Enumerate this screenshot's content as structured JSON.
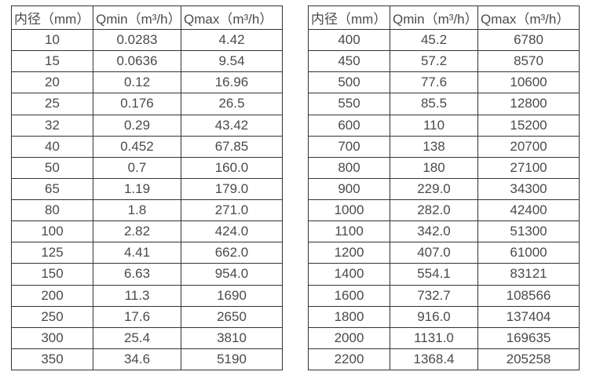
{
  "page": {
    "background": "#ffffff",
    "text_color": "#4a4a4a",
    "border_color": "#333333"
  },
  "tables": [
    {
      "name": "flow-range-table-small-diameters",
      "headers": [
        "内径（mm）",
        "Qmin（m³/h）",
        "Qmax（m³/h）"
      ],
      "rows": [
        [
          "10",
          "0.0283",
          "4.42"
        ],
        [
          "15",
          "0.0636",
          "9.54"
        ],
        [
          "20",
          "0.12",
          "16.96"
        ],
        [
          "25",
          "0.176",
          "26.5"
        ],
        [
          "32",
          "0.29",
          "43.42"
        ],
        [
          "40",
          "0.452",
          "67.85"
        ],
        [
          "50",
          "0.7",
          "160.0"
        ],
        [
          "65",
          "1.19",
          "179.0"
        ],
        [
          "80",
          "1.8",
          "271.0"
        ],
        [
          "100",
          "2.82",
          "424.0"
        ],
        [
          "125",
          "4.41",
          "662.0"
        ],
        [
          "150",
          "6.63",
          "954.0"
        ],
        [
          "200",
          "11.3",
          "1690"
        ],
        [
          "250",
          "17.6",
          "2650"
        ],
        [
          "300",
          "25.4",
          "3810"
        ],
        [
          "350",
          "34.6",
          "5190"
        ]
      ]
    },
    {
      "name": "flow-range-table-large-diameters",
      "headers": [
        "内径（mm）",
        "Qmin（m³/h）",
        "Qmax（m³/h）"
      ],
      "rows": [
        [
          "400",
          "45.2",
          "6780"
        ],
        [
          "450",
          "57.2",
          "8570"
        ],
        [
          "500",
          "77.6",
          "10600"
        ],
        [
          "550",
          "85.5",
          "12800"
        ],
        [
          "600",
          "110",
          "15200"
        ],
        [
          "700",
          "138",
          "20700"
        ],
        [
          "800",
          "180",
          "27100"
        ],
        [
          "900",
          "229.0",
          "34300"
        ],
        [
          "1000",
          "282.0",
          "42400"
        ],
        [
          "1100",
          "342.0",
          "51300"
        ],
        [
          "1200",
          "407.0",
          "61000"
        ],
        [
          "1400",
          "554.1",
          "83121"
        ],
        [
          "1600",
          "732.7",
          "108566"
        ],
        [
          "1800",
          "916.0",
          "137404"
        ],
        [
          "2000",
          "1131.0",
          "169635"
        ],
        [
          "2200",
          "1368.4",
          "205258"
        ]
      ]
    }
  ]
}
